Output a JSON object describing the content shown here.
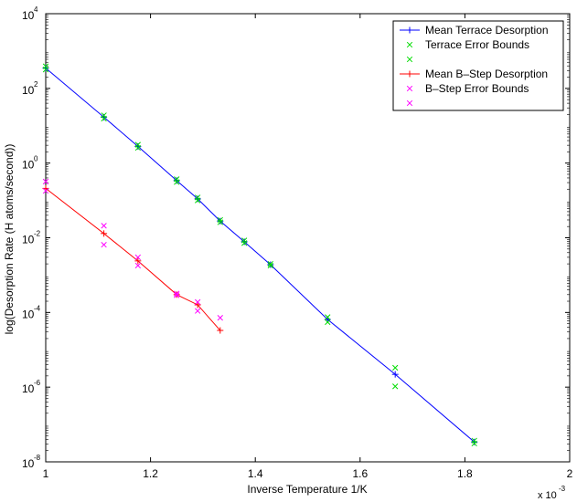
{
  "chart_data": {
    "type": "line",
    "xlabel": "Inverse Temperature 1/K",
    "ylabel": "log(Desorption Rate (H atoms/second))",
    "x_multiplier_label": "x 10",
    "x_multiplier_exponent": "-3",
    "xlim": [
      1,
      2
    ],
    "ylim": [
      1e-08,
      10000.0
    ],
    "yscale": "log",
    "x_ticks": [
      1,
      1.2,
      1.4,
      1.6,
      1.8,
      2
    ],
    "x_tick_labels": [
      "1",
      "1.2",
      "1.4",
      "1.6",
      "1.8",
      "2"
    ],
    "y_ticks": [
      1e-08,
      1e-06,
      0.0001,
      0.01,
      1,
      100.0,
      10000.0
    ],
    "y_tick_labels": [
      {
        "base": "10",
        "exp": "-8"
      },
      {
        "base": "10",
        "exp": "-6"
      },
      {
        "base": "10",
        "exp": "-4"
      },
      {
        "base": "10",
        "exp": "-2"
      },
      {
        "base": "10",
        "exp": "0"
      },
      {
        "base": "10",
        "exp": "2"
      },
      {
        "base": "10",
        "exp": "4"
      }
    ],
    "grid": false,
    "legend_position": "top-right",
    "series": [
      {
        "name": "Mean Terrace Desorption",
        "color": "#0000ff",
        "marker": "plus",
        "line": true,
        "points": [
          [
            1.0,
            350
          ],
          [
            1.111,
            17
          ],
          [
            1.176,
            2.8
          ],
          [
            1.25,
            0.34
          ],
          [
            1.29,
            0.11
          ],
          [
            1.333,
            0.028
          ],
          [
            1.379,
            0.0078
          ],
          [
            1.429,
            0.0019
          ],
          [
            1.538,
            6.5e-05
          ],
          [
            1.667,
            2.2e-06
          ],
          [
            1.818,
            3.4e-08
          ]
        ]
      },
      {
        "name": "Terrace Error Bounds",
        "color": "#00dd00",
        "marker": "x",
        "line": false,
        "points": [
          [
            1.0,
            390
          ],
          [
            1.111,
            19
          ],
          [
            1.176,
            3.1
          ],
          [
            1.25,
            0.37
          ],
          [
            1.29,
            0.12
          ],
          [
            1.333,
            0.03
          ],
          [
            1.379,
            0.0085
          ],
          [
            1.429,
            0.002
          ],
          [
            1.538,
            7.5e-05
          ],
          [
            1.667,
            3.3e-06
          ],
          [
            1.818,
            3.7e-08
          ]
        ]
      },
      {
        "name": "",
        "color": "#00dd00",
        "marker": "x",
        "line": false,
        "points": [
          [
            1.0,
            320
          ],
          [
            1.111,
            15.5
          ],
          [
            1.176,
            2.55
          ],
          [
            1.25,
            0.31
          ],
          [
            1.29,
            0.1
          ],
          [
            1.333,
            0.026
          ],
          [
            1.379,
            0.0072
          ],
          [
            1.429,
            0.0018
          ],
          [
            1.538,
            5.5e-05
          ],
          [
            1.667,
            1.05e-06
          ],
          [
            1.818,
            3.1e-08
          ]
        ]
      },
      {
        "name": "Mean B–Step Desorption",
        "color": "#ff0000",
        "marker": "plus",
        "line": true,
        "points": [
          [
            1.0,
            0.21
          ],
          [
            1.111,
            0.013
          ],
          [
            1.176,
            0.0024
          ],
          [
            1.25,
            0.0003
          ],
          [
            1.29,
            0.00016
          ],
          [
            1.333,
            3.3e-05
          ]
        ]
      },
      {
        "name": "B–Step Error Bounds",
        "color": "#ff00ff",
        "marker": "x",
        "line": false,
        "points": [
          [
            1.0,
            0.32
          ],
          [
            1.111,
            0.021
          ],
          [
            1.176,
            0.003
          ],
          [
            1.25,
            0.00032
          ],
          [
            1.29,
            0.00019
          ],
          [
            1.333,
            7.2e-05
          ]
        ]
      },
      {
        "name": "",
        "color": "#ff00ff",
        "marker": "x",
        "line": false,
        "points": [
          [
            1.0,
            0.18
          ],
          [
            1.111,
            0.0065
          ],
          [
            1.176,
            0.0018
          ],
          [
            1.25,
            0.00029
          ],
          [
            1.29,
            0.00011
          ]
        ]
      }
    ]
  }
}
